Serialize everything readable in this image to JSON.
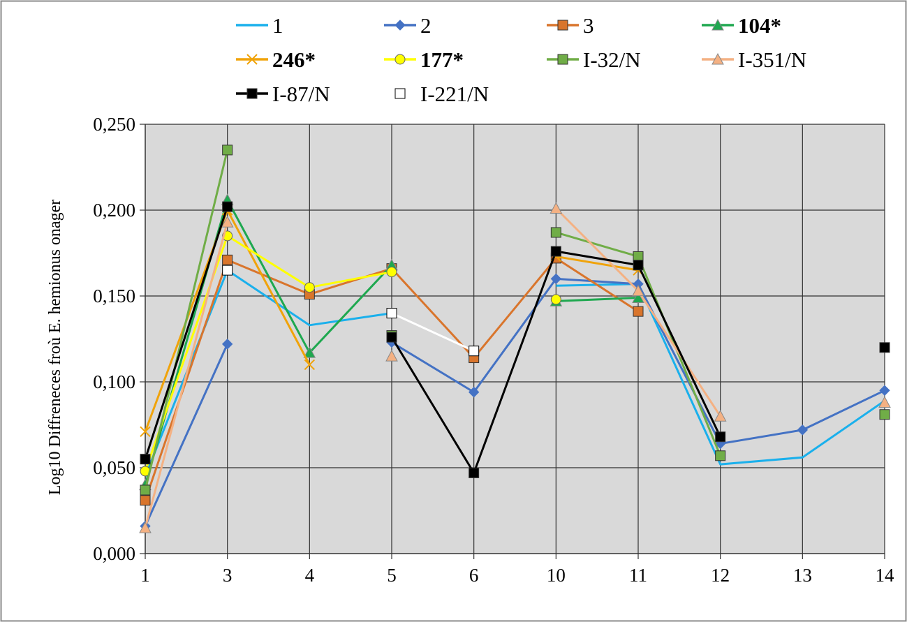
{
  "chart_data": {
    "type": "line",
    "title": "",
    "xlabel": "",
    "ylabel": "Log10  Diffreneces froù E. hemionus onager",
    "categories": [
      "1",
      "3",
      "4",
      "5",
      "6",
      "10",
      "11",
      "12",
      "13",
      "14"
    ],
    "ylim": [
      0,
      0.25
    ],
    "yticks": [
      0,
      0.05,
      0.1,
      0.15,
      0.2,
      0.25
    ],
    "ytick_labels": [
      "0,000",
      "0,050",
      "0,100",
      "0,150",
      "0,200",
      "0,250"
    ],
    "grid": true,
    "plot_background": "#d9d9d9",
    "legend_position": "top",
    "series": [
      {
        "name": "1",
        "bold": false,
        "color": "#1ab0ec",
        "marker": "none",
        "values": [
          0.045,
          0.165,
          0.133,
          0.14,
          null,
          0.156,
          0.157,
          0.052,
          0.056,
          0.089
        ]
      },
      {
        "name": "2",
        "bold": false,
        "color": "#4472c4",
        "marker": "diamond",
        "values": [
          0.016,
          0.122,
          null,
          0.123,
          0.094,
          0.16,
          0.157,
          0.064,
          0.072,
          0.095
        ]
      },
      {
        "name": "3",
        "bold": false,
        "color": "#d9752c",
        "marker": "square",
        "values": [
          0.031,
          0.171,
          0.151,
          0.166,
          0.114,
          0.172,
          0.141,
          null,
          null,
          null
        ]
      },
      {
        "name": "104*",
        "bold": true,
        "color": "#1ea84f",
        "marker": "triangle",
        "values": [
          0.04,
          0.206,
          0.117,
          0.168,
          null,
          0.147,
          0.149,
          null,
          null,
          null
        ]
      },
      {
        "name": "246*",
        "bold": true,
        "color": "#f0a30a",
        "marker": "x",
        "values": [
          0.071,
          0.2,
          0.11,
          null,
          null,
          0.173,
          0.165,
          null,
          null,
          null
        ]
      },
      {
        "name": "177*",
        "bold": true,
        "color": "#ffff00",
        "marker": "circle",
        "values": [
          0.048,
          0.185,
          0.155,
          0.164,
          null,
          0.148,
          null,
          null,
          null,
          null
        ]
      },
      {
        "name": "I-32/N",
        "bold": false,
        "color": "#70ad47",
        "marker": "square",
        "values": [
          0.037,
          0.235,
          null,
          0.127,
          null,
          0.187,
          0.173,
          0.057,
          null,
          0.081
        ]
      },
      {
        "name": "I-351/N",
        "bold": false,
        "color": "#f4b183",
        "marker": "triangle",
        "values": [
          0.015,
          0.193,
          null,
          0.115,
          null,
          0.201,
          0.153,
          0.08,
          null,
          0.088
        ]
      },
      {
        "name": "I-87/N",
        "bold": false,
        "color": "#000000",
        "marker": "square",
        "values": [
          0.055,
          0.202,
          null,
          0.126,
          0.047,
          0.176,
          0.168,
          0.068,
          null,
          0.12
        ]
      },
      {
        "name": "I-221/N",
        "bold": false,
        "color": "#ffffff",
        "marker": "square",
        "values": [
          null,
          0.165,
          null,
          0.14,
          0.118,
          null,
          null,
          null,
          null,
          null
        ]
      }
    ]
  }
}
